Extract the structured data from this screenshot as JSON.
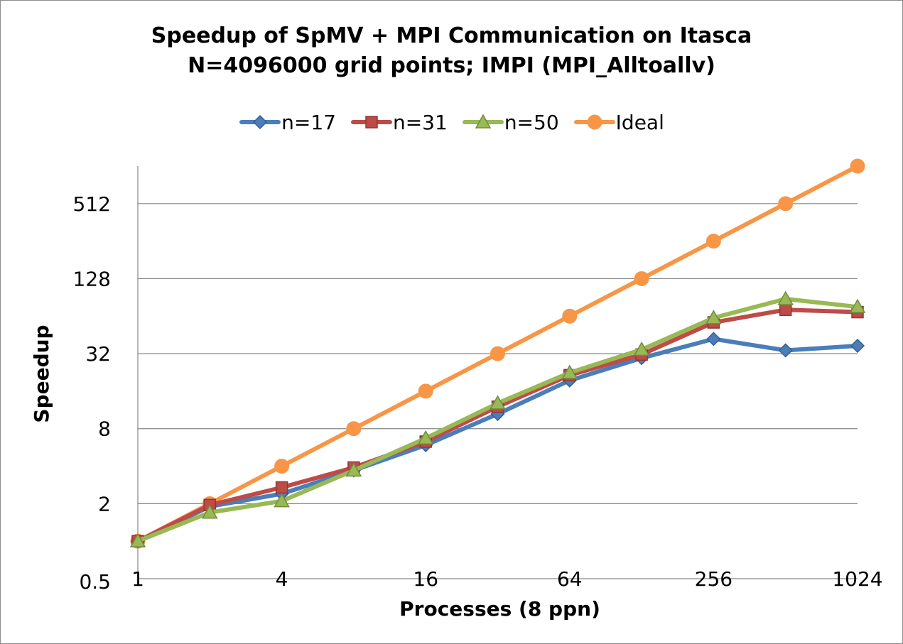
{
  "chart_data": {
    "type": "line",
    "title": [
      "Speedup of SpMV + MPI Communication on Itasca",
      "N=4096000 grid points; IMPI (MPI_Alltoallv)"
    ],
    "xlabel": "Processes (8 ppn)",
    "ylabel": "Speedup",
    "x_scale": "log2",
    "y_scale": "log2",
    "xlim": [
      1,
      1024
    ],
    "ylim": [
      0.5,
      1024
    ],
    "x_ticks": [
      1,
      4,
      16,
      64,
      256,
      1024
    ],
    "x_tick_labels": [
      "1",
      "4",
      "16",
      "64",
      "256",
      "1024"
    ],
    "y_ticks": [
      0.5,
      2,
      8,
      32,
      128,
      512
    ],
    "y_tick_labels": [
      "0.5",
      "2",
      "8",
      "32",
      "128",
      "512"
    ],
    "grid": "horizontal",
    "legend_position": "top",
    "x": [
      1,
      2,
      4,
      8,
      16,
      32,
      64,
      128,
      256,
      512,
      1024
    ],
    "series": [
      {
        "name": "n=17",
        "color": "#4a7ebb",
        "marker": "diamond",
        "values": [
          1,
          1.9,
          2.4,
          3.7,
          5.9,
          10.5,
          19.5,
          29.5,
          42,
          34,
          37
        ]
      },
      {
        "name": "n=31",
        "color": "#be4b48",
        "marker": "square",
        "values": [
          1,
          1.95,
          2.7,
          3.9,
          6.3,
          12,
          21.5,
          31.5,
          57,
          72,
          69
        ]
      },
      {
        "name": "n=50",
        "color": "#98b954",
        "marker": "triangle",
        "values": [
          1,
          1.7,
          2.1,
          3.7,
          6.7,
          12.8,
          22.5,
          34.5,
          62,
          88,
          76
        ]
      },
      {
        "name": "Ideal",
        "color": "#f79646",
        "marker": "circle",
        "values": [
          1,
          2,
          4,
          8,
          16,
          32,
          64,
          128,
          256,
          512,
          1024
        ]
      }
    ]
  }
}
